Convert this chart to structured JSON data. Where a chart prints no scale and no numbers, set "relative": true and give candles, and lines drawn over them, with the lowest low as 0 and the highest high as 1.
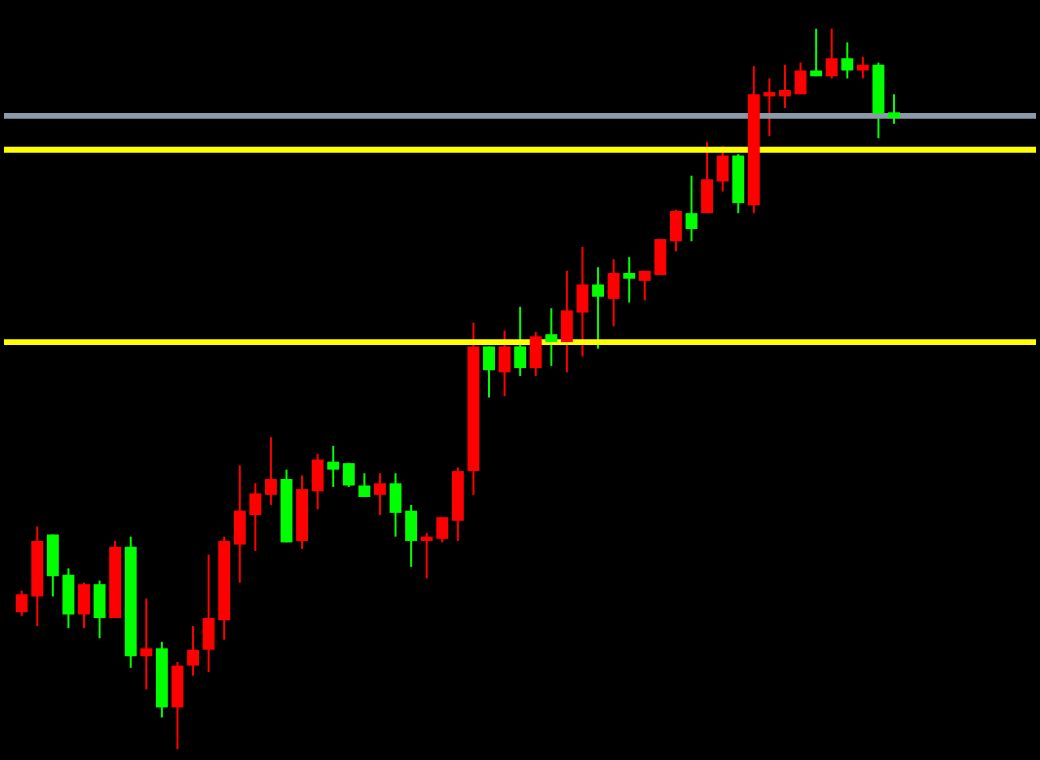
{
  "chart_data": {
    "type": "candlestick",
    "relative": true,
    "categories": [
      null,
      null,
      null,
      null,
      null,
      null,
      null,
      null,
      null,
      null,
      null,
      null,
      null,
      null,
      null,
      null,
      null,
      null,
      null,
      null,
      null,
      null,
      null,
      null,
      null,
      null,
      null,
      null,
      null,
      null,
      null,
      null,
      null,
      null,
      null,
      null,
      null,
      null,
      null,
      null,
      null,
      null,
      null,
      null,
      null,
      null,
      null,
      null,
      null,
      null,
      null,
      null,
      null,
      null,
      null,
      null,
      null
    ],
    "ohlc": [
      [
        0.19,
        0.22,
        0.185,
        0.215
      ],
      [
        0.212,
        0.309,
        0.171,
        0.289
      ],
      [
        0.298,
        0.298,
        0.212,
        0.24
      ],
      [
        0.242,
        0.251,
        0.168,
        0.187
      ],
      [
        0.187,
        0.231,
        0.168,
        0.229
      ],
      [
        0.229,
        0.234,
        0.154,
        0.182
      ],
      [
        0.182,
        0.289,
        0.182,
        0.281
      ],
      [
        0.281,
        0.295,
        0.113,
        0.129
      ],
      [
        0.129,
        0.209,
        0.083,
        0.14
      ],
      [
        0.14,
        0.149,
        0.044,
        0.058
      ],
      [
        0.058,
        0.121,
        0,
        0.116
      ],
      [
        0.116,
        0.171,
        0.102,
        0.138
      ],
      [
        0.138,
        0.27,
        0.107,
        0.182
      ],
      [
        0.179,
        0.295,
        0.152,
        0.289
      ],
      [
        0.284,
        0.394,
        0.231,
        0.331
      ],
      [
        0.325,
        0.369,
        0.275,
        0.355
      ],
      [
        0.353,
        0.433,
        0.339,
        0.375
      ],
      [
        0.375,
        0.388,
        0.287,
        0.287
      ],
      [
        0.289,
        0.38,
        0.278,
        0.361
      ],
      [
        0.358,
        0.41,
        0.333,
        0.402
      ],
      [
        0.399,
        0.421,
        0.364,
        0.388
      ],
      [
        0.397,
        0.397,
        0.364,
        0.366
      ],
      [
        0.366,
        0.383,
        0.35,
        0.35
      ],
      [
        0.353,
        0.383,
        0.325,
        0.369
      ],
      [
        0.369,
        0.383,
        0.295,
        0.328
      ],
      [
        0.331,
        0.339,
        0.253,
        0.289
      ],
      [
        0.289,
        0.3,
        0.237,
        0.295
      ],
      [
        0.292,
        0.322,
        0.287,
        0.322
      ],
      [
        0.317,
        0.391,
        0.289,
        0.386
      ],
      [
        0.386,
        0.592,
        0.353,
        0.559
      ],
      [
        0.559,
        0.559,
        0.488,
        0.526
      ],
      [
        0.523,
        0.581,
        0.49,
        0.559
      ],
      [
        0.559,
        0.614,
        0.518,
        0.529
      ],
      [
        0.529,
        0.579,
        0.518,
        0.573
      ],
      [
        0.576,
        0.612,
        0.532,
        0.565
      ],
      [
        0.565,
        0.664,
        0.523,
        0.609
      ],
      [
        0.606,
        0.697,
        0.545,
        0.645
      ],
      [
        0.645,
        0.669,
        0.556,
        0.628
      ],
      [
        0.625,
        0.68,
        0.587,
        0.661
      ],
      [
        0.661,
        0.683,
        0.62,
        0.653
      ],
      [
        0.65,
        0.664,
        0.623,
        0.664
      ],
      [
        0.658,
        0.708,
        0.658,
        0.708
      ],
      [
        0.705,
        0.749,
        0.691,
        0.747
      ],
      [
        0.744,
        0.796,
        0.705,
        0.722
      ],
      [
        0.744,
        0.843,
        0.744,
        0.791
      ],
      [
        0.788,
        0.837,
        0.774,
        0.824
      ],
      [
        0.824,
        0.826,
        0.744,
        0.758
      ],
      [
        0.755,
        0.948,
        0.744,
        0.909
      ],
      [
        0.906,
        0.931,
        0.851,
        0.912
      ],
      [
        0.906,
        0.95,
        0.89,
        0.915
      ],
      [
        0.909,
        0.953,
        0.909,
        0.942
      ],
      [
        0.942,
        1,
        0.934,
        0.934
      ],
      [
        0.934,
        1,
        0.931,
        0.959
      ],
      [
        0.959,
        0.981,
        0.931,
        0.942
      ],
      [
        0.942,
        0.961,
        0.931,
        0.95
      ],
      [
        0.95,
        0.953,
        0.848,
        0.882
      ],
      [
        0.884,
        0.909,
        0.868,
        0.876
      ]
    ],
    "colors": [
      "#ff0000",
      "#ff0000",
      "#00ff00",
      "#00ff00",
      "#ff0000",
      "#00ff00",
      "#ff0000",
      "#00ff00",
      "#ff0000",
      "#00ff00",
      "#ff0000",
      "#ff0000",
      "#ff0000",
      "#ff0000",
      "#ff0000",
      "#ff0000",
      "#ff0000",
      "#00ff00",
      "#ff0000",
      "#ff0000",
      "#00ff00",
      "#00ff00",
      "#00ff00",
      "#ff0000",
      "#00ff00",
      "#00ff00",
      "#ff0000",
      "#ff0000",
      "#ff0000",
      "#ff0000",
      "#00ff00",
      "#ff0000",
      "#00ff00",
      "#ff0000",
      "#00ff00",
      "#ff0000",
      "#ff0000",
      "#00ff00",
      "#ff0000",
      "#00ff00",
      "#ff0000",
      "#ff0000",
      "#ff0000",
      "#00ff00",
      "#ff0000",
      "#ff0000",
      "#00ff00",
      "#ff0000",
      "#ff0000",
      "#ff0000",
      "#ff0000",
      "#00ff00",
      "#ff0000",
      "#00ff00",
      "#ff0000",
      "#00ff00",
      "#00ff00"
    ],
    "ref_lines": [
      {
        "axis": "y",
        "value": 0.879,
        "color": "#8a9aa6"
      },
      {
        "axis": "y",
        "value": 0.832,
        "color": "#ffff00"
      },
      {
        "axis": "y",
        "value": 0.565,
        "color": "#ffff00"
      }
    ]
  }
}
